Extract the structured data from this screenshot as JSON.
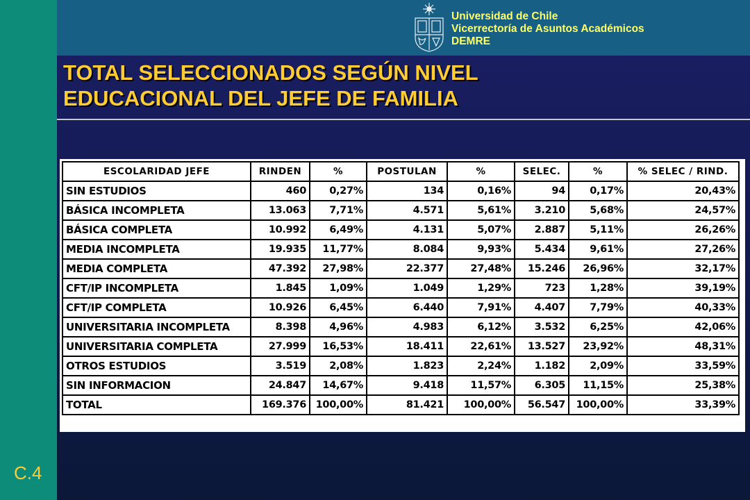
{
  "header": {
    "institution_lines": [
      "Universidad de Chile",
      "Vicerrectoría de Asuntos Académicos",
      "DEMRE"
    ]
  },
  "title_lines": [
    "TOTAL SELECCIONADOS SEGÚN NIVEL",
    "EDUCACIONAL DEL JEFE DE FAMILIA"
  ],
  "slide_code": "C.4",
  "colors": {
    "background": "#141a52",
    "left_bar": "#0e8c7a",
    "top_band": "#175f85",
    "title": "#ffcc33",
    "institution_text": "#ffff66"
  },
  "icons": {
    "logo": "university-crest-icon"
  },
  "table": {
    "columns": [
      "ESCOLARIDAD JEFE",
      "RINDEN",
      "%",
      "POSTULAN",
      "%",
      "SELEC.",
      "%",
      "% SELEC / RIND."
    ],
    "rows": [
      [
        "SIN ESTUDIOS",
        "460",
        "0,27%",
        "134",
        "0,16%",
        "94",
        "0,17%",
        "20,43%"
      ],
      [
        "BÁSICA INCOMPLETA",
        "13.063",
        "7,71%",
        "4.571",
        "5,61%",
        "3.210",
        "5,68%",
        "24,57%"
      ],
      [
        "BÁSICA COMPLETA",
        "10.992",
        "6,49%",
        "4.131",
        "5,07%",
        "2.887",
        "5,11%",
        "26,26%"
      ],
      [
        "MEDIA INCOMPLETA",
        "19.935",
        "11,77%",
        "8.084",
        "9,93%",
        "5.434",
        "9,61%",
        "27,26%"
      ],
      [
        "MEDIA COMPLETA",
        "47.392",
        "27,98%",
        "22.377",
        "27,48%",
        "15.246",
        "26,96%",
        "32,17%"
      ],
      [
        "CFT/IP INCOMPLETA",
        "1.845",
        "1,09%",
        "1.049",
        "1,29%",
        "723",
        "1,28%",
        "39,19%"
      ],
      [
        "CFT/IP COMPLETA",
        "10.926",
        "6,45%",
        "6.440",
        "7,91%",
        "4.407",
        "7,79%",
        "40,33%"
      ],
      [
        "UNIVERSITARIA INCOMPLETA",
        "8.398",
        "4,96%",
        "4.983",
        "6,12%",
        "3.532",
        "6,25%",
        "42,06%"
      ],
      [
        "UNIVERSITARIA COMPLETA",
        "27.999",
        "16,53%",
        "18.411",
        "22,61%",
        "13.527",
        "23,92%",
        "48,31%"
      ],
      [
        "OTROS ESTUDIOS",
        "3.519",
        "2,08%",
        "1.823",
        "2,24%",
        "1.182",
        "2,09%",
        "33,59%"
      ],
      [
        "SIN INFORMACION",
        "24.847",
        "14,67%",
        "9.418",
        "11,57%",
        "6.305",
        "11,15%",
        "25,38%"
      ],
      [
        "TOTAL",
        "169.376",
        "100,00%",
        "81.421",
        "100,00%",
        "56.547",
        "100,00%",
        "33,39%"
      ]
    ]
  }
}
